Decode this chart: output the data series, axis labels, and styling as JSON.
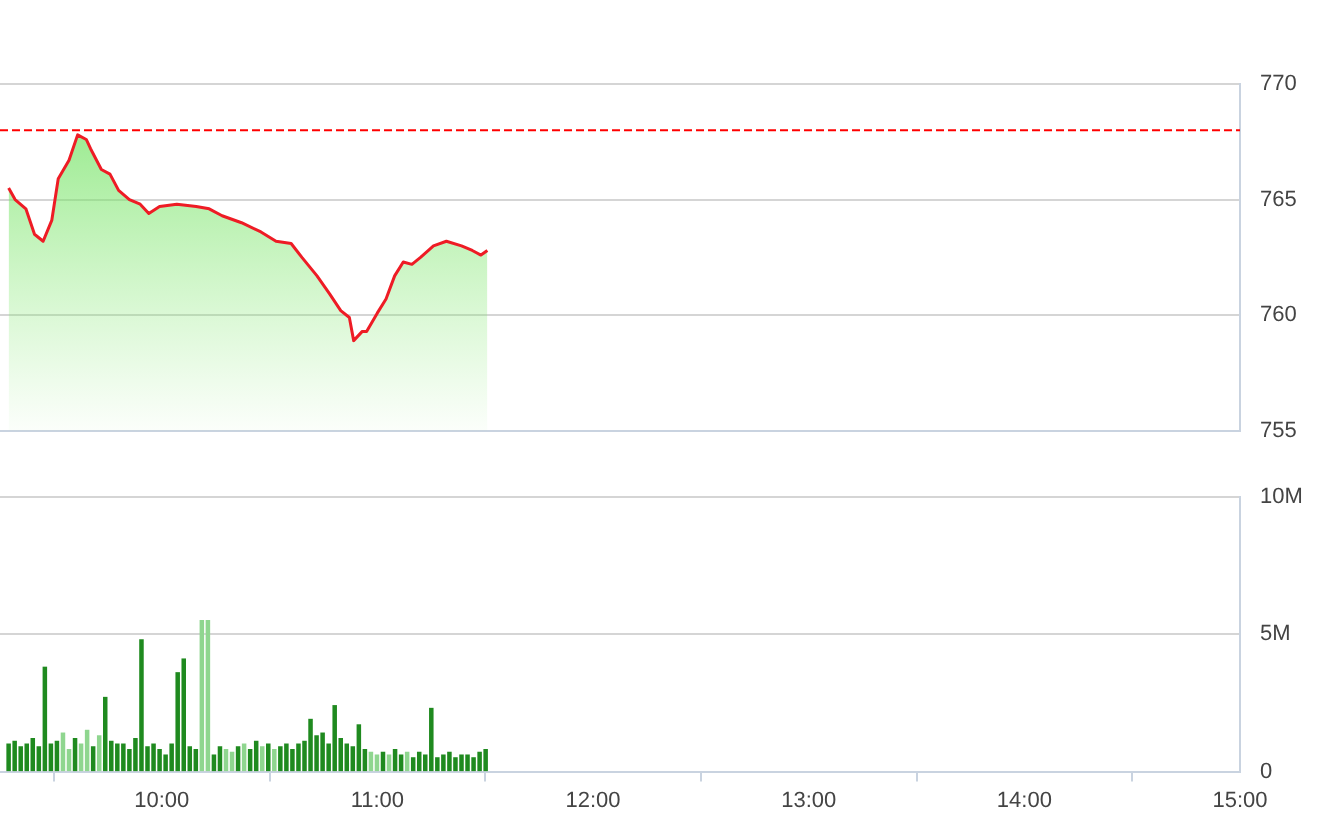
{
  "chart_data": [
    {
      "type": "area",
      "xlim": [
        9.25,
        15
      ],
      "ylim": [
        755,
        770
      ],
      "yticks": [
        755,
        760,
        765,
        770
      ],
      "grid": "y",
      "tick_labels": "y",
      "x": [
        9.29,
        9.32,
        9.37,
        9.41,
        9.45,
        9.49,
        9.52,
        9.57,
        9.61,
        9.65,
        9.67,
        9.72,
        9.76,
        9.8,
        9.85,
        9.9,
        9.94,
        9.99,
        10.07,
        10.16,
        10.22,
        10.28,
        10.37,
        10.46,
        10.53,
        10.6,
        10.65,
        10.72,
        10.78,
        10.83,
        10.87,
        10.89,
        10.93,
        10.95,
        11.0,
        11.04,
        11.08,
        11.12,
        11.16,
        11.2,
        11.26,
        11.32,
        11.39,
        11.44,
        11.48,
        11.51
      ],
      "series": [
        {
          "color": "#ee1c25",
          "values": [
            765.5,
            765.0,
            764.6,
            763.5,
            763.2,
            764.1,
            765.9,
            766.7,
            767.8,
            767.6,
            767.2,
            766.3,
            766.1,
            765.4,
            765.0,
            764.8,
            764.4,
            764.7,
            764.8,
            764.7,
            764.6,
            764.3,
            764.0,
            763.6,
            763.2,
            763.1,
            762.5,
            761.7,
            760.9,
            760.2,
            759.9,
            758.9,
            759.3,
            759.3,
            760.1,
            760.7,
            761.7,
            762.3,
            762.2,
            762.5,
            763.0,
            763.2,
            763.0,
            762.8,
            762.6,
            762.8
          ]
        }
      ],
      "ref_lines": [
        {
          "axis": "y",
          "value": 768,
          "color": "#ff0000",
          "line_style": "dashed"
        }
      ]
    },
    {
      "type": "bar",
      "xlim": [
        9.25,
        15
      ],
      "xticks": [
        {
          "value": 10,
          "label": "10:00"
        },
        {
          "value": 11,
          "label": "11:00"
        },
        {
          "value": 12,
          "label": "12:00"
        },
        {
          "value": 13,
          "label": "13:00"
        },
        {
          "value": 14,
          "label": "14:00"
        },
        {
          "value": 15,
          "label": "15:00"
        }
      ],
      "ylim": [
        0,
        10
      ],
      "yticks": [
        0,
        {
          "value": 5,
          "label": "5M"
        },
        {
          "value": 10,
          "label": "10M"
        }
      ],
      "grid": "y",
      "x": [
        9.29,
        9.318,
        9.346,
        9.374,
        9.402,
        9.43,
        9.458,
        9.486,
        9.514,
        9.542,
        9.57,
        9.598,
        9.626,
        9.654,
        9.682,
        9.71,
        9.738,
        9.766,
        9.794,
        9.822,
        9.85,
        9.878,
        9.906,
        9.934,
        9.962,
        9.99,
        10.018,
        10.046,
        10.074,
        10.102,
        10.13,
        10.158,
        10.186,
        10.214,
        10.242,
        10.27,
        10.298,
        10.326,
        10.354,
        10.382,
        10.41,
        10.438,
        10.466,
        10.494,
        10.522,
        10.55,
        10.578,
        10.606,
        10.634,
        10.662,
        10.69,
        10.718,
        10.746,
        10.774,
        10.802,
        10.83,
        10.858,
        10.886,
        10.914,
        10.942,
        10.97,
        10.998,
        11.026,
        11.054,
        11.082,
        11.11,
        11.138,
        11.166,
        11.194,
        11.222,
        11.25,
        11.278,
        11.306,
        11.334,
        11.362,
        11.39,
        11.418,
        11.446,
        11.474,
        11.502
      ],
      "series": [
        {
          "values": [
            1.0,
            1.1,
            0.9,
            1.0,
            1.2,
            0.9,
            3.8,
            1.0,
            1.1,
            1.4,
            0.8,
            1.2,
            1.0,
            1.5,
            0.9,
            1.3,
            2.7,
            1.1,
            1.0,
            1.0,
            0.8,
            1.2,
            4.8,
            0.9,
            1.0,
            0.8,
            0.6,
            1.0,
            3.6,
            4.1,
            0.9,
            0.8,
            5.5,
            5.5,
            0.6,
            0.9,
            0.8,
            0.7,
            0.9,
            1.0,
            0.8,
            1.1,
            0.9,
            1.0,
            0.8,
            0.9,
            1.0,
            0.8,
            1.0,
            1.1,
            1.9,
            1.3,
            1.4,
            1.0,
            2.4,
            1.2,
            1.0,
            0.9,
            1.7,
            0.8,
            0.7,
            0.6,
            0.7,
            0.6,
            0.8,
            0.6,
            0.7,
            0.5,
            0.7,
            0.6,
            2.3,
            0.5,
            0.6,
            0.7,
            0.5,
            0.6,
            0.6,
            0.5,
            0.7,
            0.8
          ],
          "colors": [
            "#1f8a1f",
            "#1f8a1f",
            "#1f8a1f",
            "#1f8a1f",
            "#1f8a1f",
            "#1f8a1f",
            "#1f8a1f",
            "#1f8a1f",
            "#1f8a1f",
            "#8fd68f",
            "#8fd68f",
            "#1f8a1f",
            "#8fd68f",
            "#8fd68f",
            "#1f8a1f",
            "#8fd68f",
            "#1f8a1f",
            "#1f8a1f",
            "#1f8a1f",
            "#1f8a1f",
            "#1f8a1f",
            "#1f8a1f",
            "#1f8a1f",
            "#1f8a1f",
            "#1f8a1f",
            "#1f8a1f",
            "#1f8a1f",
            "#1f8a1f",
            "#1f8a1f",
            "#1f8a1f",
            "#1f8a1f",
            "#1f8a1f",
            "#8fd68f",
            "#8fd68f",
            "#1f8a1f",
            "#1f8a1f",
            "#8fd68f",
            "#8fd68f",
            "#1f8a1f",
            "#8fd68f",
            "#1f8a1f",
            "#1f8a1f",
            "#8fd68f",
            "#1f8a1f",
            "#8fd68f",
            "#1f8a1f",
            "#1f8a1f",
            "#1f8a1f",
            "#1f8a1f",
            "#1f8a1f",
            "#1f8a1f",
            "#1f8a1f",
            "#1f8a1f",
            "#1f8a1f",
            "#1f8a1f",
            "#1f8a1f",
            "#1f8a1f",
            "#1f8a1f",
            "#1f8a1f",
            "#1f8a1f",
            "#8fd68f",
            "#8fd68f",
            "#1f8a1f",
            "#8fd68f",
            "#1f8a1f",
            "#1f8a1f",
            "#8fd68f",
            "#1f8a1f",
            "#1f8a1f",
            "#1f8a1f",
            "#1f8a1f",
            "#1f8a1f",
            "#1f8a1f",
            "#1f8a1f",
            "#1f8a1f",
            "#1f8a1f",
            "#1f8a1f",
            "#1f8a1f",
            "#1f8a1f",
            "#1f8a1f"
          ]
        }
      ]
    }
  ]
}
